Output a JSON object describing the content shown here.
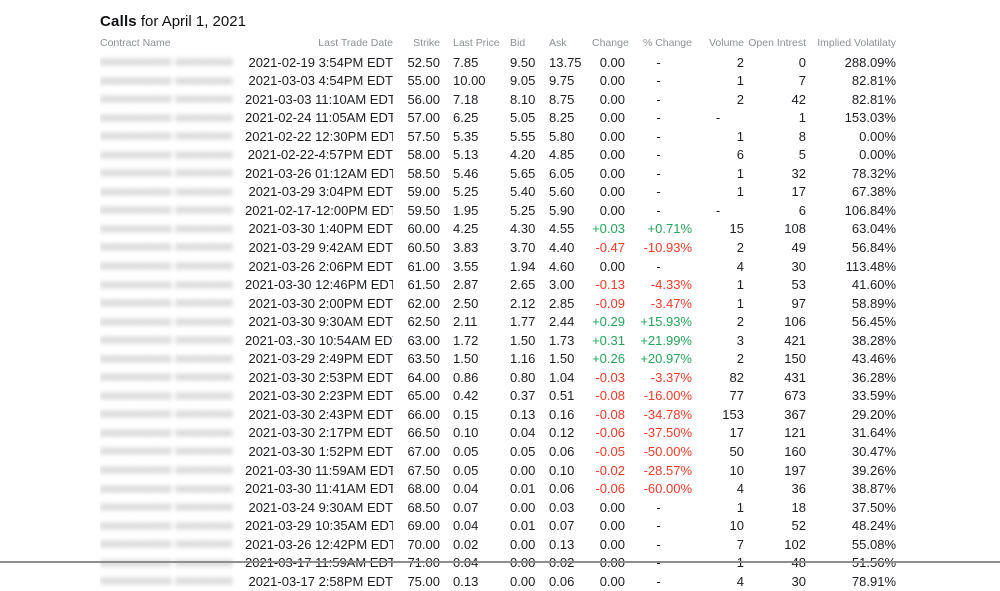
{
  "header": {
    "title_bold": "Calls",
    "title_rest": "for April 1, 2021"
  },
  "colors": {
    "positive": "#24a45a",
    "negative": "#eb3b29"
  },
  "table": {
    "contract_mask": "0000000000 00000000",
    "columns": [
      {
        "key": "contract",
        "label": "Contract Name",
        "align": "left"
      },
      {
        "key": "date",
        "label": "Last Trade Date",
        "align": "right"
      },
      {
        "key": "strike",
        "label": "Strike",
        "align": "right"
      },
      {
        "key": "last",
        "label": "Last Price",
        "align": "left"
      },
      {
        "key": "bid",
        "label": "Bid",
        "align": "left"
      },
      {
        "key": "ask",
        "label": "Ask",
        "align": "left"
      },
      {
        "key": "change",
        "label": "Change",
        "align": "right"
      },
      {
        "key": "pct_change",
        "label": "% Change",
        "align": "right"
      },
      {
        "key": "volume",
        "label": "Volume",
        "align": "right"
      },
      {
        "key": "open_interest",
        "label": "Open Intrest",
        "align": "right"
      },
      {
        "key": "implied_vol",
        "label": "Implied Volatilaty",
        "align": "right"
      }
    ],
    "rows": [
      {
        "date": "2021-02-19 3:54PM EDT",
        "strike": "52.50",
        "last": "7.85",
        "bid": "9.50",
        "ask": "13.75",
        "change": "0.00",
        "pct_change": "-",
        "volume": "2",
        "open_interest": "0",
        "implied_vol": "288.09%",
        "dir": "flat"
      },
      {
        "date": "2021-03-03 4:54PM EDT",
        "strike": "55.00",
        "last": "10.00",
        "bid": "9.05",
        "ask": "9.75",
        "change": "0.00",
        "pct_change": "-",
        "volume": "1",
        "open_interest": "7",
        "implied_vol": "82.81%",
        "dir": "flat"
      },
      {
        "date": "2021-03-03 11:10AM EDT",
        "strike": "56.00",
        "last": "7.18",
        "bid": "8.10",
        "ask": "8.75",
        "change": "0.00",
        "pct_change": "-",
        "volume": "2",
        "open_interest": "42",
        "implied_vol": "82.81%",
        "dir": "flat"
      },
      {
        "date": "2021-02-24 11:05AM EDT",
        "strike": "57.00",
        "last": "6.25",
        "bid": "5.05",
        "ask": "8.25",
        "change": "0.00",
        "pct_change": "-",
        "volume": "-",
        "open_interest": "1",
        "implied_vol": "153.03%",
        "dir": "flat"
      },
      {
        "date": "2021-02-22 12:30PM EDT",
        "strike": "57.50",
        "last": "5.35",
        "bid": "5.55",
        "ask": "5.80",
        "change": "0.00",
        "pct_change": "-",
        "volume": "1",
        "open_interest": "8",
        "implied_vol": "0.00%",
        "dir": "flat"
      },
      {
        "date": "2021-02-22-4:57PM EDT",
        "strike": "58.00",
        "last": "5.13",
        "bid": "4.20",
        "ask": "4.85",
        "change": "0.00",
        "pct_change": "-",
        "volume": "6",
        "open_interest": "5",
        "implied_vol": "0.00%",
        "dir": "flat"
      },
      {
        "date": "2021-03-26 01:12AM EDT",
        "strike": "58.50",
        "last": "5.46",
        "bid": "5.65",
        "ask": "6.05",
        "change": "0.00",
        "pct_change": "-",
        "volume": "1",
        "open_interest": "32",
        "implied_vol": "78.32%",
        "dir": "flat"
      },
      {
        "date": "2021-03-29 3:04PM EDT",
        "strike": "59.00",
        "last": "5.25",
        "bid": "5.40",
        "ask": "5.60",
        "change": "0.00",
        "pct_change": "-",
        "volume": "1",
        "open_interest": "17",
        "implied_vol": "67.38%",
        "dir": "flat"
      },
      {
        "date": "2021-02-17-12:00PM EDT",
        "strike": "59.50",
        "last": "1.95",
        "bid": "5.25",
        "ask": "5.90",
        "change": "0.00",
        "pct_change": "-",
        "volume": "-",
        "open_interest": "6",
        "implied_vol": "106.84%",
        "dir": "flat"
      },
      {
        "date": "2021-03-30 1:40PM EDT",
        "strike": "60.00",
        "last": "4.25",
        "bid": "4.30",
        "ask": "4.55",
        "change": "+0.03",
        "pct_change": "+0.71%",
        "volume": "15",
        "open_interest": "108",
        "implied_vol": "63.04%",
        "dir": "up"
      },
      {
        "date": "2021-03-29 9:42AM EDT",
        "strike": "60.50",
        "last": "3.83",
        "bid": "3.70",
        "ask": "4.40",
        "change": "-0.47",
        "pct_change": "-10.93%",
        "volume": "2",
        "open_interest": "49",
        "implied_vol": "56.84%",
        "dir": "down"
      },
      {
        "date": "2021-03-26 2:06PM EDT",
        "strike": "61.00",
        "last": "3.55",
        "bid": "1.94",
        "ask": "4.60",
        "change": "0.00",
        "pct_change": "-",
        "volume": "4",
        "open_interest": "30",
        "implied_vol": "113.48%",
        "dir": "flat"
      },
      {
        "date": "2021-03-30 12:46PM EDT",
        "strike": "61.50",
        "last": "2.87",
        "bid": "2.65",
        "ask": "3.00",
        "change": "-0.13",
        "pct_change": "-4.33%",
        "volume": "1",
        "open_interest": "53",
        "implied_vol": "41.60%",
        "dir": "down"
      },
      {
        "date": "2021-03-30 2:00PM EDT",
        "strike": "62.00",
        "last": "2.50",
        "bid": "2.12",
        "ask": "2.85",
        "change": "-0.09",
        "pct_change": "-3.47%",
        "volume": "1",
        "open_interest": "97",
        "implied_vol": "58.89%",
        "dir": "down"
      },
      {
        "date": "2021-03-30 9:30AM EDT",
        "strike": "62.50",
        "last": "2.11",
        "bid": "1.77",
        "ask": "2.44",
        "change": "+0.29",
        "pct_change": "+15.93%",
        "volume": "2",
        "open_interest": "106",
        "implied_vol": "56.45%",
        "dir": "up"
      },
      {
        "date": "2021-03.-30 10:54AM EDT",
        "strike": "63.00",
        "last": "1.72",
        "bid": "1.50",
        "ask": "1.73",
        "change": "+0.31",
        "pct_change": "+21.99%",
        "volume": "3",
        "open_interest": "421",
        "implied_vol": "38.28%",
        "dir": "up"
      },
      {
        "date": "2021-03-29 2:49PM EDT",
        "strike": "63.50",
        "last": "1.50",
        "bid": "1.16",
        "ask": "1.50",
        "change": "+0.26",
        "pct_change": "+20.97%",
        "volume": "2",
        "open_interest": "150",
        "implied_vol": "43.46%",
        "dir": "up"
      },
      {
        "date": "2021-03-30 2:53PM EDT",
        "strike": "64.00",
        "last": "0.86",
        "bid": "0.80",
        "ask": "1.04",
        "change": "-0.03",
        "pct_change": "-3.37%",
        "volume": "82",
        "open_interest": "431",
        "implied_vol": "36.28%",
        "dir": "down"
      },
      {
        "date": "2021-03-30 2:23PM EDT",
        "strike": "65.00",
        "last": "0.42",
        "bid": "0.37",
        "ask": "0.51",
        "change": "-0.08",
        "pct_change": "-16.00%",
        "volume": "77",
        "open_interest": "673",
        "implied_vol": "33.59%",
        "dir": "down"
      },
      {
        "date": "2021-03-30 2:43PM EDT",
        "strike": "66.00",
        "last": "0.15",
        "bid": "0.13",
        "ask": "0.16",
        "change": "-0.08",
        "pct_change": "-34.78%",
        "volume": "153",
        "open_interest": "367",
        "implied_vol": "29.20%",
        "dir": "down"
      },
      {
        "date": "2021-03-30 2:17PM EDT",
        "strike": "66.50",
        "last": "0.10",
        "bid": "0.04",
        "ask": "0.12",
        "change": "-0.06",
        "pct_change": "-37.50%",
        "volume": "17",
        "open_interest": "121",
        "implied_vol": "31.64%",
        "dir": "down"
      },
      {
        "date": "2021-03-30 1:52PM EDT",
        "strike": "67.00",
        "last": "0.05",
        "bid": "0.05",
        "ask": "0.06",
        "change": "-0.05",
        "pct_change": "-50.00%",
        "volume": "50",
        "open_interest": "160",
        "implied_vol": "30.47%",
        "dir": "down"
      },
      {
        "date": "2021-03-30 11:59AM EDT",
        "strike": "67.50",
        "last": "0.05",
        "bid": "0.00",
        "ask": "0.10",
        "change": "-0.02",
        "pct_change": "-28.57%",
        "volume": "10",
        "open_interest": "197",
        "implied_vol": "39.26%",
        "dir": "down"
      },
      {
        "date": "2021-03-30 11:41AM EDT",
        "strike": "68.00",
        "last": "0.04",
        "bid": "0.01",
        "ask": "0.06",
        "change": "-0.06",
        "pct_change": "-60.00%",
        "volume": "4",
        "open_interest": "36",
        "implied_vol": "38.87%",
        "dir": "down"
      },
      {
        "date": "2021-03-24 9:30AM EDT",
        "strike": "68.50",
        "last": "0.07",
        "bid": "0.00",
        "ask": "0.03",
        "change": "0.00",
        "pct_change": "-",
        "volume": "1",
        "open_interest": "18",
        "implied_vol": "37.50%",
        "dir": "flat"
      },
      {
        "date": "2021-03-29 10:35AM EDT",
        "strike": "69.00",
        "last": "0.04",
        "bid": "0.01",
        "ask": "0.07",
        "change": "0.00",
        "pct_change": "-",
        "volume": "10",
        "open_interest": "52",
        "implied_vol": "48.24%",
        "dir": "flat"
      },
      {
        "date": "2021-03-26 12:42PM EDT",
        "strike": "70.00",
        "last": "0.02",
        "bid": "0.00",
        "ask": "0.13",
        "change": "0.00",
        "pct_change": "-",
        "volume": "7",
        "open_interest": "102",
        "implied_vol": "55.08%",
        "dir": "flat"
      },
      {
        "date": "2021-03-17 11:59AM EDT",
        "strike": "71.00",
        "last": "0.04",
        "bid": "0.00",
        "ask": "0.02",
        "change": "0.00",
        "pct_change": "-",
        "volume": "1",
        "open_interest": "48",
        "implied_vol": "51.56%",
        "dir": "flat"
      },
      {
        "date": "2021-03-17 2:58PM EDT",
        "strike": "75.00",
        "last": "0.13",
        "bid": "0.00",
        "ask": "0.06",
        "change": "0.00",
        "pct_change": "-",
        "volume": "4",
        "open_interest": "30",
        "implied_vol": "78.91%",
        "dir": "flat"
      }
    ]
  }
}
